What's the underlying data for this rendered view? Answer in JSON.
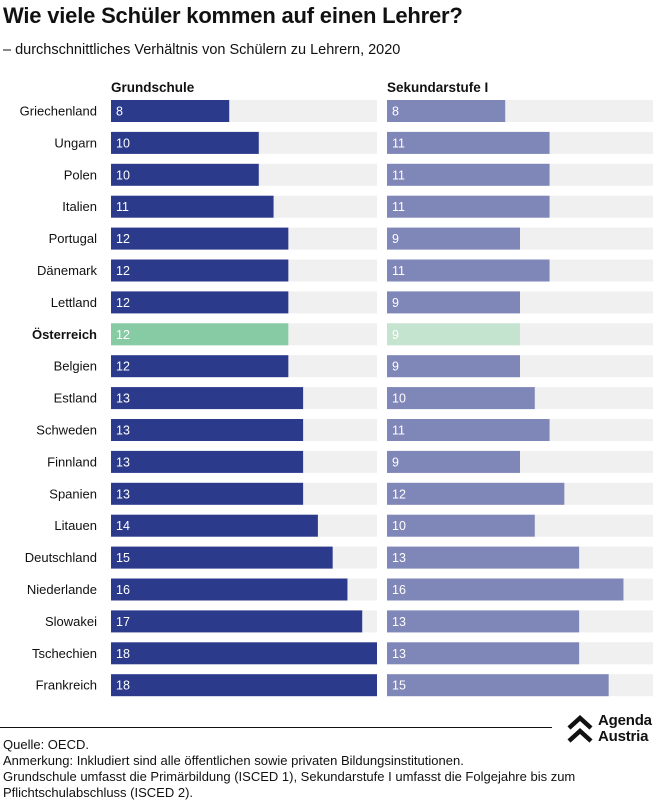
{
  "title": "Wie viele Schüler kommen auf einen Lehrer?",
  "subtitle": "– durchschnittliches Verhältnis von Schülern zu Lehrern, 2020",
  "colors": {
    "primary_dark": "#2c3a8c",
    "secondary_light": "#7f86b8",
    "highlight_dark": "#87cba4",
    "highlight_light": "#c4e4cf",
    "track": "#f0f0f0"
  },
  "chart_data": {
    "type": "bar",
    "orientation": "horizontal",
    "highlight": "Österreich",
    "categories": [
      "Griechenland",
      "Ungarn",
      "Polen",
      "Italien",
      "Portugal",
      "Dänemark",
      "Lettland",
      "Österreich",
      "Belgien",
      "Estland",
      "Schweden",
      "Finnland",
      "Spanien",
      "Litauen",
      "Deutschland",
      "Niederlande",
      "Slowakei",
      "Tschechien",
      "Frankreich"
    ],
    "series": [
      {
        "name": "Grundschule",
        "values": [
          8,
          10,
          10,
          11,
          12,
          12,
          12,
          12,
          12,
          13,
          13,
          13,
          13,
          14,
          15,
          16,
          17,
          18,
          18
        ]
      },
      {
        "name": "Sekundarstufe I",
        "values": [
          8,
          11,
          11,
          11,
          9,
          11,
          9,
          9,
          9,
          10,
          11,
          9,
          12,
          10,
          13,
          16,
          13,
          13,
          15
        ]
      }
    ],
    "xlim": [
      0,
      18
    ]
  },
  "footer": {
    "source": "Quelle: OECD.",
    "note_1": "Anmerkung: Inkludiert sind alle öffentlichen sowie privaten Bildungsinstitutionen.",
    "note_2": "Grundschule umfasst die Primärbildung (ISCED 1), Sekundarstufe I umfasst die Folgejahre bis zum",
    "note_3": "Pflichtschulabschluss (ISCED 2)."
  },
  "logo": {
    "icon": "agenda-austria-logo-icon",
    "line1": "Agenda",
    "line2": "Austria"
  }
}
